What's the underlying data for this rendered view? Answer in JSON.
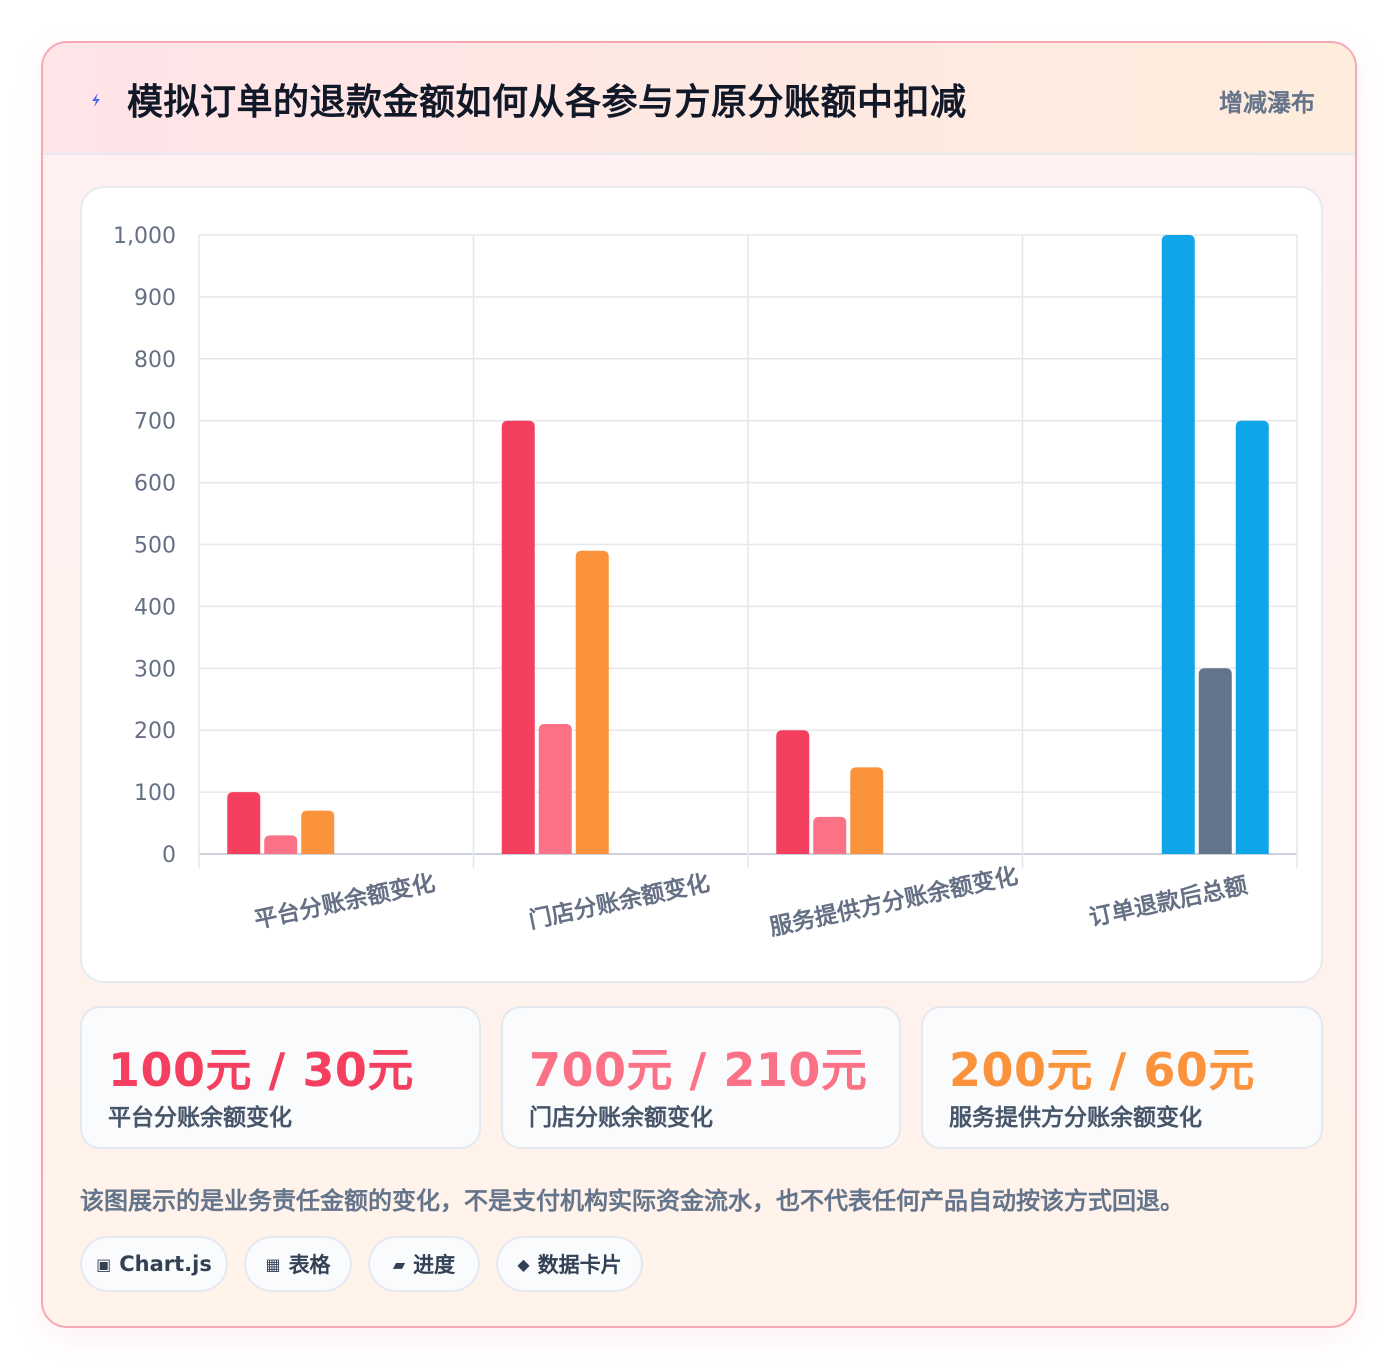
{
  "header": {
    "icon": "lightning-icon",
    "title": "模拟订单的退款金额如何从各参与方原分账额中扣减",
    "mode_label": "增减瀑布"
  },
  "chart_data": {
    "type": "bar",
    "categories": [
      "平台分账余额变化",
      "门店分账余额变化",
      "服务提供方分账余额变化",
      "订单退款后总额"
    ],
    "series": [
      {
        "values": [
          100,
          700,
          200,
          null
        ],
        "color": "#f43f5e"
      },
      {
        "values": [
          30,
          210,
          60,
          null
        ],
        "color": "#fb7185"
      },
      {
        "values": [
          70,
          490,
          140,
          null
        ],
        "color": "#fb923c"
      },
      {
        "values": [
          null,
          null,
          null,
          1000
        ],
        "color": "#0ea5e9"
      },
      {
        "values": [
          null,
          null,
          null,
          300
        ],
        "color": "#64748b"
      },
      {
        "values": [
          null,
          null,
          null,
          700
        ],
        "color": "#0ea5e9"
      }
    ],
    "yticks": [
      "0",
      "100",
      "200",
      "300",
      "400",
      "500",
      "600",
      "700",
      "800",
      "900",
      "1,000"
    ],
    "ylim": [
      0,
      1000
    ],
    "grid": true
  },
  "stats": [
    {
      "value": "100元 / 30元",
      "label": "平台分账余额变化",
      "color": "#f43f5e"
    },
    {
      "value": "700元 / 210元",
      "label": "门店分账余额变化",
      "color": "#fb7185"
    },
    {
      "value": "200元 / 60元",
      "label": "服务提供方分账余额变化",
      "color": "#fb923c"
    }
  ],
  "note": "该图展示的是业务责任金额的变化，不是支付机构实际资金流水，也不代表任何产品自动按该方式回退。",
  "pills": [
    {
      "icon": "chart-icon",
      "glyph": "▣",
      "label": "Chart.js"
    },
    {
      "icon": "table-icon",
      "glyph": "▦",
      "label": "表格"
    },
    {
      "icon": "progress-icon",
      "glyph": "▰",
      "label": "进度"
    },
    {
      "icon": "data-card-icon",
      "glyph": "◆",
      "label": "数据卡片"
    }
  ]
}
